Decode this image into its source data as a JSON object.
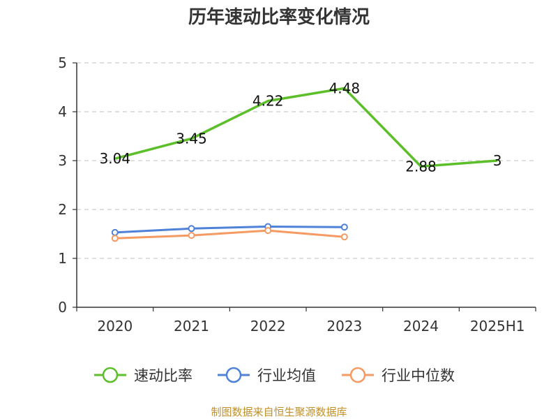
{
  "chart_data": {
    "type": "line",
    "title": "历年速动比率变化情况",
    "categories": [
      "2020",
      "2021",
      "2022",
      "2023",
      "2024",
      "2025H1"
    ],
    "ylim": [
      0,
      5
    ],
    "yticks": [
      "0",
      "1",
      "2",
      "3",
      "4",
      "5"
    ],
    "grid": true,
    "legend_position": "bottom",
    "series": [
      {
        "name": "速动比率",
        "color": "#5cbf2a",
        "values": [
          3.04,
          3.45,
          4.22,
          4.48,
          2.88,
          3
        ],
        "labels": [
          "3.04",
          "3.45",
          "4.22",
          "4.48",
          "2.88",
          "3"
        ],
        "markers": false
      },
      {
        "name": "行业均值",
        "color": "#4f81d9",
        "values": [
          1.53,
          1.61,
          1.65,
          1.64,
          null,
          null
        ],
        "markers": true
      },
      {
        "name": "行业中位数",
        "color": "#f59a62",
        "values": [
          1.41,
          1.47,
          1.57,
          1.44,
          null,
          null
        ],
        "markers": true
      }
    ]
  },
  "footer": {
    "source": "制图数据来自恒生聚源数据库"
  }
}
